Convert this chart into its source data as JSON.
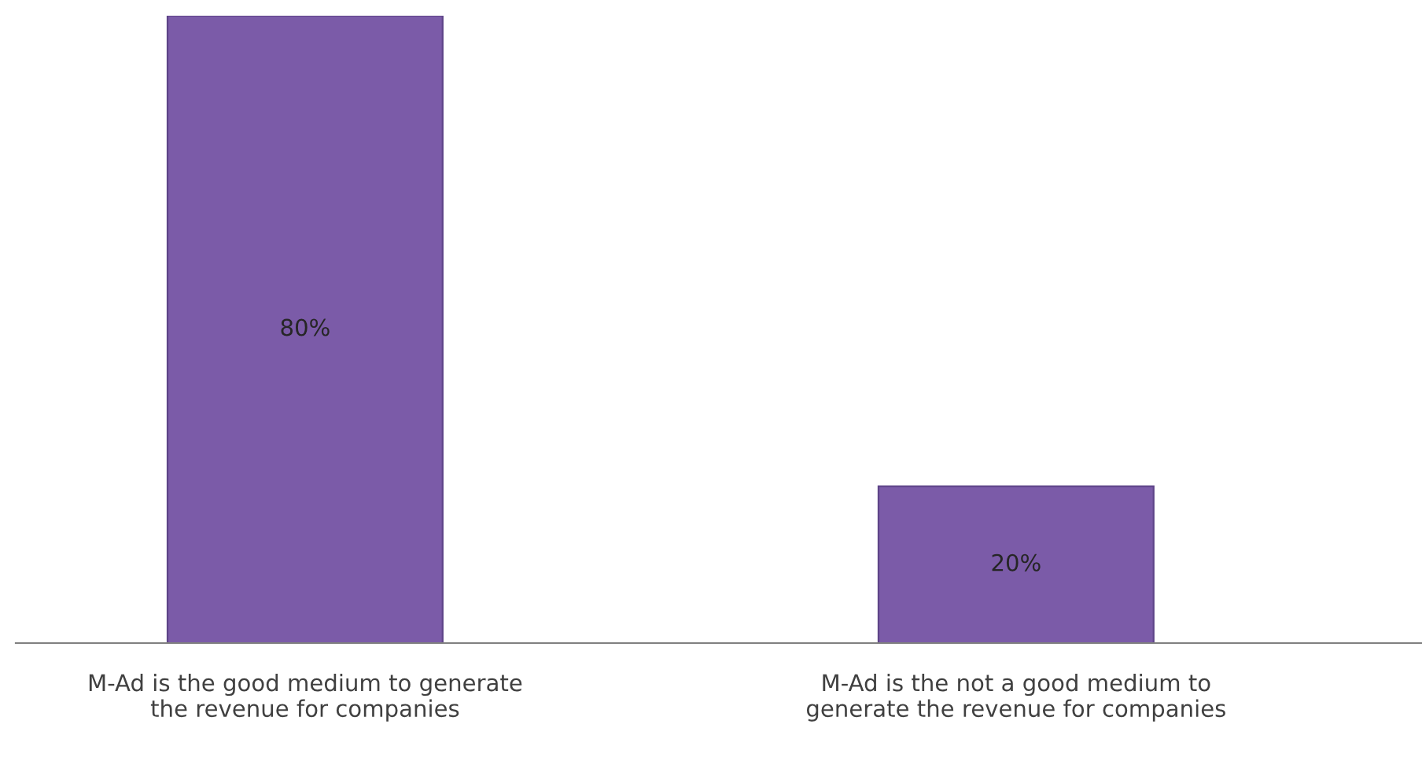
{
  "chart_data": {
    "type": "bar",
    "categories": [
      "M-Ad is the good medium to generate\nthe revenue for companies",
      "M-Ad is the not a good medium to\ngenerate the revenue for companies"
    ],
    "values": [
      80,
      20
    ],
    "value_labels": [
      "80%",
      "20%"
    ],
    "color": "#7b5ba8",
    "grid": false,
    "legend": false
  }
}
